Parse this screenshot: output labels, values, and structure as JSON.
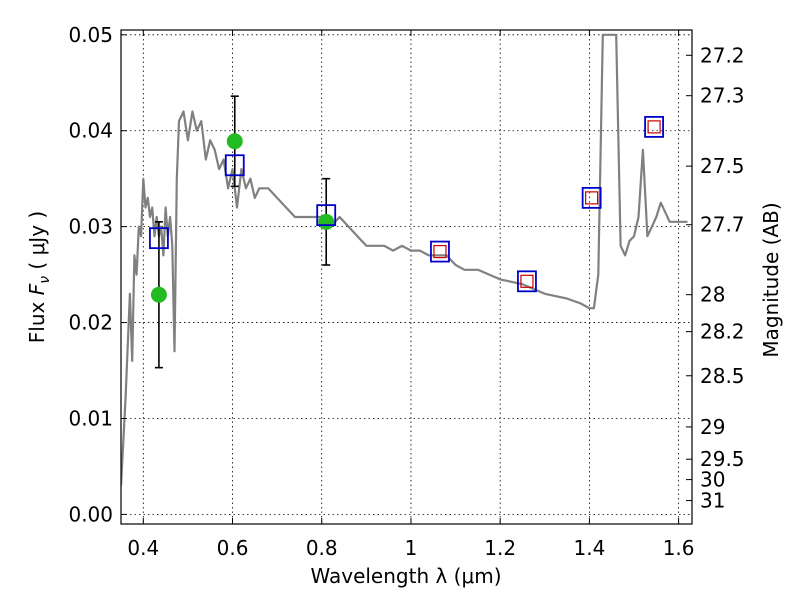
{
  "chart_data": {
    "type": "scatter",
    "xlabel": "Wavelength  λ (μm)",
    "ylabel": "Flux  F_ν  ( μJy )",
    "y2label": "Magnitude (AB)",
    "xlim": [
      0.35,
      1.63
    ],
    "ylim": [
      -0.001,
      0.0505
    ],
    "xticks": [
      0.4,
      0.6,
      0.8,
      1.0,
      1.2,
      1.4,
      1.6
    ],
    "xtick_labels": [
      "0.4",
      "0.6",
      "0.8",
      "1",
      "1.2",
      "1.4",
      "1.6"
    ],
    "yticks": [
      0.0,
      0.01,
      0.02,
      0.03,
      0.04,
      0.05
    ],
    "ytick_labels": [
      "0.00",
      "0.01",
      "0.02",
      "0.03",
      "0.04",
      "0.05"
    ],
    "y2ticks": [
      27.2,
      27.3,
      27.5,
      27.7,
      28,
      28.2,
      28.5,
      29,
      29.5,
      30,
      31
    ],
    "y2tick_labels": [
      "27.2",
      "27.3",
      "27.5",
      "27.7",
      "28",
      "28.2",
      "28.5",
      "29",
      "29.5",
      "30",
      "31"
    ],
    "grid": true,
    "colors": {
      "model": "#808080",
      "observed": "#22bb22",
      "model_box": "#0000cc",
      "model_small_box": "#cc0000",
      "errorbar": "#000000"
    },
    "series": [
      {
        "kind": "line",
        "x": [
          0.35,
          0.36,
          0.37,
          0.375,
          0.38,
          0.385,
          0.39,
          0.395,
          0.4,
          0.405,
          0.41,
          0.415,
          0.42,
          0.425,
          0.43,
          0.435,
          0.44,
          0.445,
          0.45,
          0.455,
          0.46,
          0.465,
          0.47,
          0.475,
          0.48,
          0.49,
          0.5,
          0.51,
          0.52,
          0.53,
          0.54,
          0.55,
          0.56,
          0.57,
          0.58,
          0.59,
          0.6,
          0.61,
          0.62,
          0.63,
          0.64,
          0.65,
          0.66,
          0.68,
          0.7,
          0.72,
          0.74,
          0.76,
          0.78,
          0.8,
          0.82,
          0.84,
          0.86,
          0.88,
          0.9,
          0.92,
          0.94,
          0.96,
          0.98,
          1.0,
          1.02,
          1.04,
          1.06,
          1.08,
          1.1,
          1.12,
          1.15,
          1.2,
          1.25,
          1.3,
          1.35,
          1.38,
          1.4,
          1.41,
          1.42,
          1.43,
          1.44,
          1.45,
          1.46,
          1.47,
          1.48,
          1.49,
          1.5,
          1.51,
          1.52,
          1.53,
          1.54,
          1.55,
          1.56,
          1.58,
          1.6,
          1.62
        ],
        "y": [
          0.003,
          0.012,
          0.023,
          0.016,
          0.027,
          0.025,
          0.03,
          0.029,
          0.035,
          0.032,
          0.033,
          0.031,
          0.032,
          0.029,
          0.031,
          0.029,
          0.03,
          0.027,
          0.032,
          0.029,
          0.031,
          0.028,
          0.017,
          0.035,
          0.041,
          0.042,
          0.039,
          0.042,
          0.04,
          0.041,
          0.037,
          0.039,
          0.038,
          0.036,
          0.037,
          0.034,
          0.036,
          0.032,
          0.036,
          0.034,
          0.035,
          0.033,
          0.034,
          0.034,
          0.033,
          0.032,
          0.031,
          0.031,
          0.031,
          0.031,
          0.03,
          0.031,
          0.03,
          0.029,
          0.028,
          0.028,
          0.028,
          0.0275,
          0.028,
          0.0275,
          0.0275,
          0.027,
          0.027,
          0.027,
          0.026,
          0.0255,
          0.0255,
          0.0245,
          0.024,
          0.023,
          0.0225,
          0.022,
          0.0215,
          0.0215,
          0.025,
          0.05,
          0.05,
          0.05,
          0.05,
          0.028,
          0.027,
          0.0285,
          0.029,
          0.031,
          0.038,
          0.029,
          0.03,
          0.031,
          0.0325,
          0.0305,
          0.0305,
          0.0305
        ]
      },
      {
        "kind": "observed",
        "x": [
          0.435,
          0.605,
          0.81
        ],
        "y": [
          0.0229,
          0.0389,
          0.0305
        ],
        "yerr": [
          0.0076,
          0.0047,
          0.0045
        ]
      },
      {
        "kind": "model_photometry",
        "x": [
          0.435,
          0.605,
          0.81,
          1.065,
          1.26,
          1.405,
          1.545
        ],
        "y": [
          0.0288,
          0.0364,
          0.0312,
          0.0274,
          0.0243,
          0.033,
          0.0404
        ],
        "small_box": [
          false,
          false,
          false,
          true,
          true,
          true,
          true
        ]
      }
    ]
  }
}
